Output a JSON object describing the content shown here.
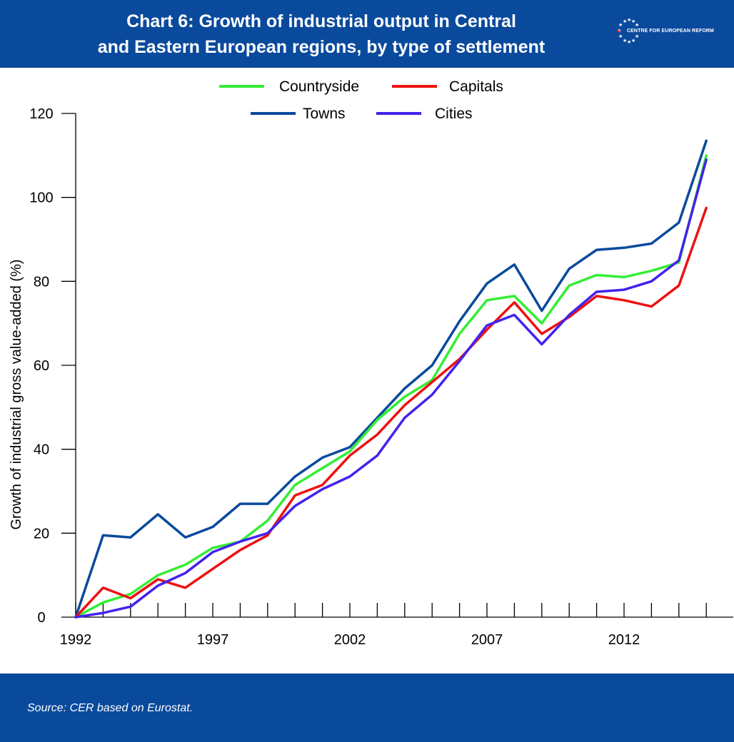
{
  "header": {
    "title_line1": "Chart 6: Growth of industrial output in Central",
    "title_line2": "and Eastern European regions, by type of settlement",
    "logo_text": "CENTRE FOR EUROPEAN REFORM",
    "logo_icon": "eu-stars-icon"
  },
  "footer": {
    "source": "Source:  CER based on Eurostat."
  },
  "colors": {
    "header_bg": "#0a4a9c",
    "Countryside": "#33ee33",
    "Capitals": "#ee1111",
    "Towns": "#0a4a9c",
    "Cities": "#4422ee"
  },
  "chart_data": {
    "type": "line",
    "title": "Chart 6: Growth of industrial output in Central and Eastern European regions, by type of settlement",
    "ylabel": "Growth of industrial gross value-added (%)",
    "xlabel": "",
    "ylim": [
      0,
      120
    ],
    "yticks": [
      0,
      20,
      40,
      60,
      80,
      100,
      120
    ],
    "x": [
      1992,
      1993,
      1994,
      1995,
      1996,
      1997,
      1998,
      1999,
      2000,
      2001,
      2002,
      2003,
      2004,
      2005,
      2006,
      2007,
      2008,
      2009,
      2010,
      2011,
      2012,
      2013,
      2014,
      2015
    ],
    "xtick_labels": [
      "1992",
      "1997",
      "2002",
      "2007",
      "2012"
    ],
    "legend_position": "top-center",
    "grid": false,
    "series": [
      {
        "name": "Countryside",
        "values": [
          0,
          3.5,
          5.5,
          10,
          12.5,
          16.5,
          18,
          23,
          31.5,
          35.5,
          39.5,
          47,
          52.5,
          56.5,
          67.5,
          75.5,
          76.5,
          70,
          79,
          81.5,
          81,
          82.5,
          84.5,
          110
        ]
      },
      {
        "name": "Capitals",
        "values": [
          0,
          7,
          4.5,
          9,
          7,
          11.5,
          16,
          19.5,
          29,
          31.5,
          38.5,
          43.5,
          50.5,
          56,
          61.5,
          68.5,
          75,
          67.5,
          71.5,
          76.5,
          75.5,
          74,
          79,
          97.5
        ]
      },
      {
        "name": "Towns",
        "values": [
          0,
          19.5,
          19,
          24.5,
          19,
          21.5,
          27,
          27,
          33.5,
          38,
          40.5,
          47.5,
          54.5,
          60,
          70.5,
          79.5,
          84,
          73,
          83,
          87.5,
          88,
          89,
          94,
          113.5
        ]
      },
      {
        "name": "Cities",
        "values": [
          0,
          1,
          2.5,
          7.5,
          10.5,
          15.5,
          18,
          20,
          26.5,
          30.5,
          33.5,
          38.5,
          47.5,
          53,
          61,
          69.5,
          72,
          65,
          72,
          77.5,
          78,
          80,
          85,
          109
        ]
      }
    ]
  }
}
